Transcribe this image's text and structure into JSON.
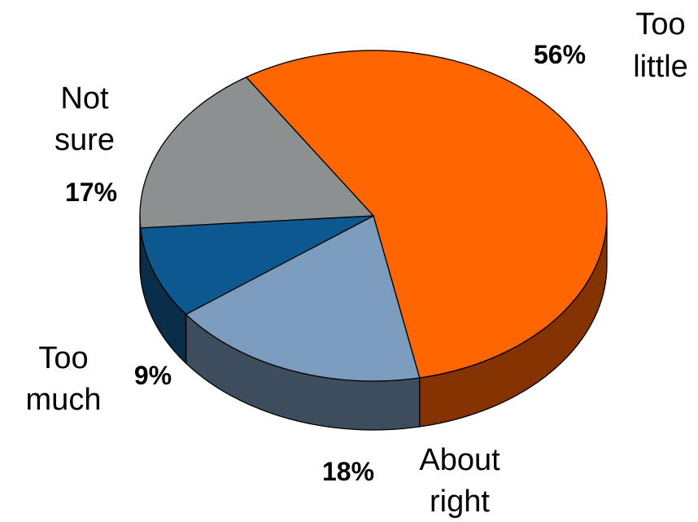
{
  "chart_data": {
    "type": "pie",
    "style": "3d",
    "slices": [
      {
        "label": [
          "Too",
          "little"
        ],
        "value": 56,
        "value_label": "56%",
        "color": "#ff6600",
        "side_color": "#843300"
      },
      {
        "label": [
          "About",
          "right"
        ],
        "value": 18,
        "value_label": "18%",
        "color": "#7b9cbd",
        "side_color": "#3e4d5e"
      },
      {
        "label": [
          "Too",
          "much"
        ],
        "value": 9,
        "value_label": "9%",
        "color": "#0e5890",
        "side_color": "#0a2d4a"
      },
      {
        "label": [
          "Not",
          "sure"
        ],
        "value": 17,
        "value_label": "17%",
        "color": "#8c9090",
        "side_color": "#474949"
      }
    ]
  }
}
